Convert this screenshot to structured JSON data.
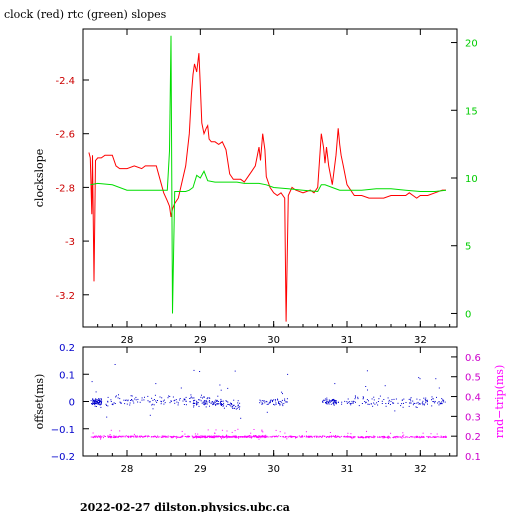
{
  "title": "clock (red) rtc (green) slopes",
  "footer": "2022-02-27  dilston.physics.ubc.ca",
  "colors": {
    "clock": "#ff0000",
    "rtc": "#00dd00",
    "offset": "#0000cc",
    "rndtrip": "#ff00ff",
    "left_top_ticks": "#cc0000",
    "right_top_ticks": "#00cc00",
    "left_bottom_ticks": "#0000cc",
    "right_bottom_ticks": "#cc00cc"
  },
  "chart_data": [
    {
      "type": "line",
      "ylabel": "clockslope",
      "y2label": "",
      "xlim": [
        27.4,
        32.5
      ],
      "ylim": [
        -3.32,
        -2.21
      ],
      "y2lim": [
        -1.0,
        21.0
      ],
      "x_ticks": [
        28,
        29,
        30,
        31,
        32
      ],
      "y_ticks": [
        -3.2,
        -3,
        -2.8,
        -2.6,
        -2.4
      ],
      "y_tick_labels": [
        "-3.2",
        "-3",
        "-2.8",
        "-2.6",
        "-2.4"
      ],
      "y2_ticks": [
        0,
        5,
        10,
        15,
        20
      ],
      "y2_tick_labels": [
        "0",
        "5",
        "10",
        "15",
        "20"
      ],
      "series": [
        {
          "axis": "left",
          "color": "#ff0000",
          "x": [
            27.48,
            27.5,
            27.52,
            27.53,
            27.55,
            27.57,
            27.6,
            27.65,
            27.7,
            27.8,
            27.85,
            27.9,
            28.0,
            28.1,
            28.2,
            28.25,
            28.3,
            28.4,
            28.5,
            28.55,
            28.58,
            28.6,
            28.62,
            28.65,
            28.7,
            28.75,
            28.8,
            28.85,
            28.88,
            28.9,
            28.92,
            28.95,
            28.98,
            29.0,
            29.02,
            29.05,
            29.08,
            29.1,
            29.12,
            29.15,
            29.2,
            29.25,
            29.3,
            29.35,
            29.4,
            29.45,
            29.5,
            29.55,
            29.6,
            29.65,
            29.7,
            29.75,
            29.8,
            29.82,
            29.85,
            29.88,
            29.9,
            29.95,
            30.0,
            30.05,
            30.1,
            30.15,
            30.17,
            30.2,
            30.25,
            30.3,
            30.4,
            30.5,
            30.55,
            30.6,
            30.65,
            30.68,
            30.7,
            30.72,
            30.75,
            30.8,
            30.85,
            30.88,
            30.9,
            30.92,
            30.95,
            31.0,
            31.1,
            31.2,
            31.3,
            31.4,
            31.5,
            31.6,
            31.7,
            31.8,
            31.85,
            31.9,
            31.95,
            32.0,
            32.1,
            32.2,
            32.3,
            32.35
          ],
          "y": [
            -2.67,
            -2.69,
            -2.9,
            -2.68,
            -3.15,
            -2.7,
            -2.69,
            -2.69,
            -2.68,
            -2.68,
            -2.72,
            -2.73,
            -2.73,
            -2.72,
            -2.73,
            -2.72,
            -2.72,
            -2.72,
            -2.82,
            -2.85,
            -2.87,
            -2.91,
            -2.88,
            -2.86,
            -2.84,
            -2.78,
            -2.72,
            -2.6,
            -2.45,
            -2.38,
            -2.34,
            -2.37,
            -2.3,
            -2.42,
            -2.56,
            -2.6,
            -2.58,
            -2.57,
            -2.62,
            -2.63,
            -2.63,
            -2.64,
            -2.63,
            -2.66,
            -2.75,
            -2.77,
            -2.77,
            -2.77,
            -2.78,
            -2.76,
            -2.74,
            -2.72,
            -2.65,
            -2.7,
            -2.6,
            -2.66,
            -2.76,
            -2.8,
            -2.82,
            -2.83,
            -2.82,
            -2.84,
            -3.3,
            -2.83,
            -2.8,
            -2.81,
            -2.82,
            -2.81,
            -2.82,
            -2.8,
            -2.6,
            -2.65,
            -2.71,
            -2.65,
            -2.72,
            -2.79,
            -2.68,
            -2.58,
            -2.64,
            -2.68,
            -2.72,
            -2.79,
            -2.83,
            -2.83,
            -2.84,
            -2.84,
            -2.84,
            -2.83,
            -2.83,
            -2.83,
            -2.82,
            -2.83,
            -2.84,
            -2.83,
            -2.83,
            -2.82,
            -2.81,
            -2.81
          ]
        },
        {
          "axis": "right",
          "color": "#00dd00",
          "x": [
            27.5,
            27.6,
            27.8,
            28.0,
            28.2,
            28.4,
            28.55,
            28.58,
            28.6,
            28.62,
            28.65,
            28.7,
            28.8,
            28.85,
            28.9,
            28.95,
            29.0,
            29.05,
            29.1,
            29.2,
            29.3,
            29.4,
            29.5,
            29.6,
            29.7,
            29.8,
            29.9,
            30.0,
            30.2,
            30.4,
            30.6,
            30.65,
            30.7,
            30.8,
            30.9,
            31.0,
            31.2,
            31.4,
            31.6,
            31.8,
            32.0,
            32.2,
            32.35
          ],
          "y": [
            9.5,
            9.6,
            9.5,
            9.1,
            9.1,
            9.1,
            9.1,
            12.0,
            20.5,
            0.0,
            9.0,
            9.0,
            9.0,
            9.1,
            9.3,
            10.2,
            10.0,
            10.5,
            9.8,
            9.7,
            9.7,
            9.7,
            9.7,
            9.6,
            9.6,
            9.6,
            9.5,
            9.3,
            9.2,
            9.1,
            9.0,
            9.5,
            9.5,
            9.3,
            9.1,
            9.1,
            9.1,
            9.2,
            9.2,
            9.1,
            9.0,
            9.0,
            9.1
          ]
        }
      ]
    },
    {
      "type": "scatter",
      "ylabel": "offset(ms)",
      "y2label": "rnd−trip(ms)",
      "xlim": [
        27.4,
        32.5
      ],
      "ylim": [
        -0.2,
        0.2
      ],
      "y2lim": [
        0.1,
        0.65
      ],
      "x_ticks": [
        28,
        29,
        30,
        31,
        32
      ],
      "y_ticks": [
        -0.2,
        -0.1,
        0,
        0.1,
        0.2
      ],
      "y_tick_labels": [
        "−0.2",
        "−0.1",
        "0",
        "0.1",
        "0.2"
      ],
      "y2_ticks": [
        0.1,
        0.2,
        0.3,
        0.4,
        0.5,
        0.6
      ],
      "y2_tick_labels": [
        "0.1",
        "0.2",
        "0.3",
        "0.4",
        "0.5",
        "0.6"
      ],
      "series": [
        {
          "axis": "left",
          "marker": "dot",
          "color": "#0000cc",
          "clusters": [
            {
              "x": [
                27.5,
                27.65
              ],
              "y": 0.0,
              "spread": 0.02,
              "n": 80
            },
            {
              "x": [
                27.7,
                28.9
              ],
              "y": 0.005,
              "spread": 0.035,
              "n": 110
            },
            {
              "x": [
                28.9,
                29.3
              ],
              "y": 0.0,
              "spread": 0.03,
              "n": 90
            },
            {
              "x": [
                29.3,
                29.55
              ],
              "y": -0.01,
              "spread": 0.03,
              "n": 40
            },
            {
              "x": [
                29.8,
                30.2
              ],
              "y": 0.0,
              "spread": 0.025,
              "n": 55
            },
            {
              "x": [
                30.65,
                30.85
              ],
              "y": 0.0,
              "spread": 0.02,
              "n": 60
            },
            {
              "x": [
                30.85,
                32.35
              ],
              "y": 0.0,
              "spread": 0.03,
              "n": 150
            }
          ]
        },
        {
          "axis": "right",
          "marker": "dot",
          "color": "#ff00ff",
          "clusters": [
            {
              "x": [
                27.5,
                28.9
              ],
              "y": 0.2,
              "spread": 0.008,
              "n": 220
            },
            {
              "x": [
                28.9,
                29.9
              ],
              "y": 0.2,
              "spread": 0.009,
              "n": 320
            },
            {
              "x": [
                29.9,
                31.0
              ],
              "y": 0.2,
              "spread": 0.008,
              "n": 160
            },
            {
              "x": [
                31.0,
                32.35
              ],
              "y": 0.198,
              "spread": 0.007,
              "n": 200
            }
          ]
        }
      ]
    }
  ]
}
